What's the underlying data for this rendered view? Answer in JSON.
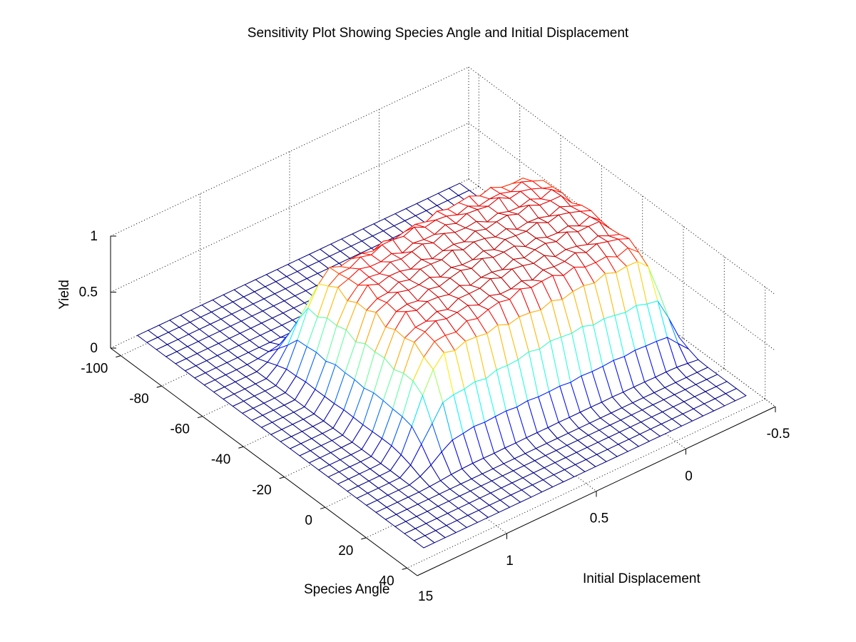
{
  "chart_data": {
    "type": "surface",
    "title": "Sensitivity Plot Showing Species Angle and Initial Displacement",
    "xlabel": "Species Angle",
    "ylabel": "Initial Displacement",
    "zlabel": "Yield",
    "x_ticks": [
      "-100",
      "-80",
      "-60",
      "-40",
      "-20",
      "0",
      "20",
      "40"
    ],
    "x_corner_tick_overlap": "15",
    "y_ticks": [
      "-0.5",
      "0",
      "0.5",
      "1"
    ],
    "z_ticks": [
      "0",
      "0.5",
      "1"
    ],
    "xlim": [
      -105,
      45
    ],
    "ylim": [
      -0.5,
      1.5
    ],
    "zlim": [
      0,
      1
    ],
    "grid": true,
    "colormap": "jet",
    "plateau": {
      "x_range_approx": [
        -65,
        15
      ],
      "y_range_approx": [
        -0.4,
        1.0
      ],
      "peak_yield": 0.95
    }
  }
}
